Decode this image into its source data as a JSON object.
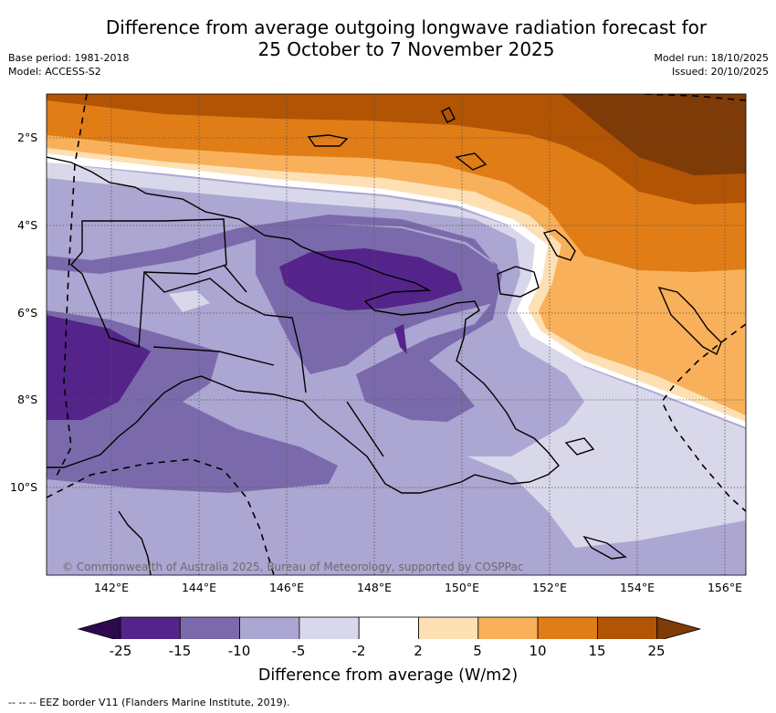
{
  "title_line1": "Difference from average outgoing longwave radiation forecast for",
  "title_line2": "25 October to 7 November 2025",
  "base_period": "Base period: 1981-2018",
  "model": "Model: ACCESS-S2",
  "model_run": "Model run: 18/10/2025",
  "issued": "Issued: 20/10/2025",
  "lat_labels": [
    "2°S",
    "4°S",
    "6°S",
    "8°S",
    "10°S"
  ],
  "lon_labels": [
    "142°E",
    "144°E",
    "146°E",
    "148°E",
    "150°E",
    "152°E",
    "154°E",
    "156°E"
  ],
  "copyright": "© Commonwealth of Australia 2025, Bureau of Meteorology, supported by COSPPac",
  "colorbar": {
    "ticks": [
      "-25",
      "-15",
      "-10",
      "-5",
      "-2",
      "2",
      "5",
      "10",
      "15",
      "25"
    ],
    "label": "Difference from average (W/m2)",
    "colors": [
      "#2d0a4e",
      "#54248a",
      "#7b6aab",
      "#aca6d2",
      "#d8d8ea",
      "#ffffff",
      "#fde0b4",
      "#f9b05a",
      "#e07d17",
      "#b15404",
      "#7e3a07"
    ]
  },
  "footnote": "--  --  -- EEZ border V11 (Flanders Marine Institute, 2019)."
}
